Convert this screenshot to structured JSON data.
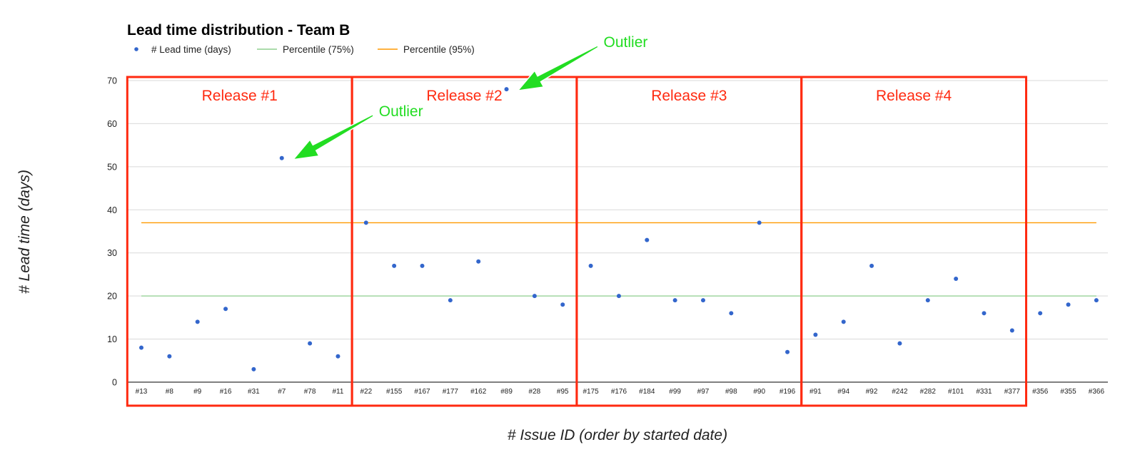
{
  "chart_data": {
    "type": "scatter",
    "title": "Lead time distribution - Team B",
    "xlabel": "# Issue ID (order by started date)",
    "ylabel": "# Lead time (days)",
    "ylim": [
      0,
      70
    ],
    "yticks": [
      0,
      10,
      20,
      30,
      40,
      50,
      60,
      70
    ],
    "grid": true,
    "legend_position": "top-left",
    "categories": [
      "#13",
      "#8",
      "#9",
      "#16",
      "#31",
      "#7",
      "#78",
      "#11",
      "#22",
      "#155",
      "#167",
      "#177",
      "#162",
      "#89",
      "#28",
      "#95",
      "#175",
      "#176",
      "#184",
      "#99",
      "#97",
      "#98",
      "#90",
      "#196",
      "#91",
      "#94",
      "#92",
      "#242",
      "#282",
      "#101",
      "#331",
      "#377",
      "#356",
      "#355",
      "#366"
    ],
    "series": [
      {
        "name": "# Lead time (days)",
        "kind": "points",
        "color": "#3366cc",
        "values": [
          8,
          6,
          14,
          17,
          3,
          52,
          9,
          6,
          37,
          27,
          27,
          19,
          28,
          68,
          20,
          18,
          27,
          20,
          33,
          19,
          19,
          16,
          37,
          7,
          11,
          14,
          27,
          9,
          19,
          24,
          16,
          12,
          16,
          18,
          19
        ]
      },
      {
        "name": "Percentile (75%)",
        "kind": "line",
        "color": "#8fcf8f",
        "value": 20
      },
      {
        "name": "Percentile (95%)",
        "kind": "line",
        "color": "#ff9900",
        "value": 37
      }
    ],
    "annotations": {
      "releases": [
        {
          "label": "Release #1",
          "start": 0,
          "end": 7
        },
        {
          "label": "Release #2",
          "start": 8,
          "end": 15
        },
        {
          "label": "Release #3",
          "start": 16,
          "end": 23
        },
        {
          "label": "Release #4",
          "start": 24,
          "end": 31
        }
      ],
      "outliers": [
        {
          "label": "Outlier",
          "index": 13
        },
        {
          "label": "Outlier",
          "index": 5
        }
      ],
      "release_color": "#ff2a10",
      "outlier_color": "#22dd22"
    }
  }
}
